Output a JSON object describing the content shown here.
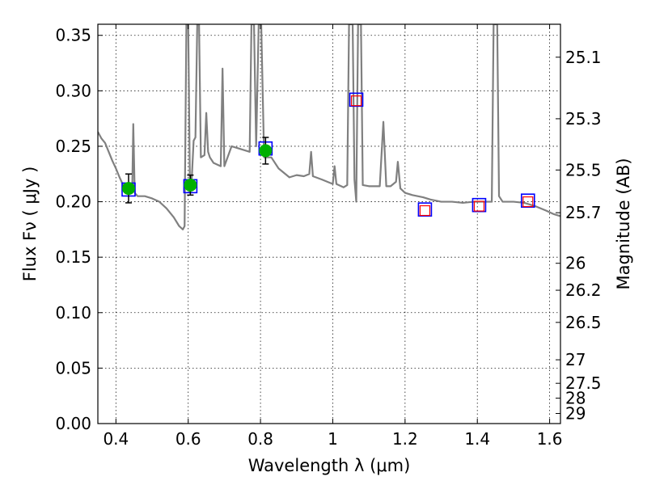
{
  "chart_data": {
    "type": "scatter",
    "xlabel": "Wavelength  λ (μm)",
    "ylabel": "Flux  Fν  ( μJy )",
    "y2label": "Magnitude (AB)",
    "xlim": [
      0.35,
      1.63
    ],
    "ylim": [
      0.0,
      0.36
    ],
    "x_ticks": [
      0.4,
      0.6,
      0.8,
      1.0,
      1.2,
      1.4,
      1.6
    ],
    "x_tick_labels": [
      "0.4",
      "0.6",
      "0.8",
      "1",
      "1.2",
      "1.4",
      "1.6"
    ],
    "y_ticks": [
      0.0,
      0.05,
      0.1,
      0.15,
      0.2,
      0.25,
      0.3,
      0.35
    ],
    "y_tick_labels": [
      "0.00",
      "0.05",
      "0.10",
      "0.15",
      "0.20",
      "0.25",
      "0.30",
      "0.35"
    ],
    "magnitude_ticks": [
      {
        "label": "25.1",
        "flux": 0.3303
      },
      {
        "label": "25.3",
        "flux": 0.2748
      },
      {
        "label": "25.5",
        "flux": 0.2286
      },
      {
        "label": "25.7",
        "flux": 0.1901
      },
      {
        "label": "26",
        "flux": 0.1445
      },
      {
        "label": "26.2",
        "flux": 0.1202
      },
      {
        "label": "26.5",
        "flux": 0.0912
      },
      {
        "label": "27",
        "flux": 0.0575
      },
      {
        "label": "27.5",
        "flux": 0.0363
      },
      {
        "label": "28",
        "flux": 0.0229
      },
      {
        "label": "29",
        "flux": 0.0091
      }
    ],
    "grid": true,
    "colors": {
      "model": "#808080",
      "model_box": "#0000ff",
      "observed": "#00b000",
      "predicted": "#ff0000",
      "errorbar": "#000000"
    },
    "model_spectrum": [
      [
        0.35,
        0.263
      ],
      [
        0.36,
        0.257
      ],
      [
        0.37,
        0.253
      ],
      [
        0.38,
        0.245
      ],
      [
        0.39,
        0.237
      ],
      [
        0.4,
        0.23
      ],
      [
        0.41,
        0.222
      ],
      [
        0.42,
        0.215
      ],
      [
        0.43,
        0.21
      ],
      [
        0.44,
        0.213
      ],
      [
        0.445,
        0.208
      ],
      [
        0.448,
        0.27
      ],
      [
        0.452,
        0.208
      ],
      [
        0.46,
        0.205
      ],
      [
        0.48,
        0.205
      ],
      [
        0.5,
        0.203
      ],
      [
        0.52,
        0.2
      ],
      [
        0.54,
        0.194
      ],
      [
        0.56,
        0.186
      ],
      [
        0.575,
        0.178
      ],
      [
        0.585,
        0.175
      ],
      [
        0.59,
        0.178
      ],
      [
        0.595,
        0.36
      ],
      [
        0.6,
        0.36
      ],
      [
        0.605,
        0.208
      ],
      [
        0.61,
        0.222
      ],
      [
        0.615,
        0.255
      ],
      [
        0.62,
        0.258
      ],
      [
        0.625,
        0.36
      ],
      [
        0.63,
        0.36
      ],
      [
        0.635,
        0.24
      ],
      [
        0.645,
        0.242
      ],
      [
        0.65,
        0.28
      ],
      [
        0.655,
        0.245
      ],
      [
        0.66,
        0.24
      ],
      [
        0.67,
        0.235
      ],
      [
        0.69,
        0.232
      ],
      [
        0.695,
        0.32
      ],
      [
        0.7,
        0.232
      ],
      [
        0.72,
        0.25
      ],
      [
        0.74,
        0.248
      ],
      [
        0.76,
        0.246
      ],
      [
        0.77,
        0.245
      ],
      [
        0.775,
        0.36
      ],
      [
        0.782,
        0.36
      ],
      [
        0.788,
        0.25
      ],
      [
        0.795,
        0.36
      ],
      [
        0.802,
        0.36
      ],
      [
        0.81,
        0.24
      ],
      [
        0.83,
        0.24
      ],
      [
        0.85,
        0.23
      ],
      [
        0.88,
        0.222
      ],
      [
        0.9,
        0.224
      ],
      [
        0.92,
        0.223
      ],
      [
        0.935,
        0.225
      ],
      [
        0.94,
        0.245
      ],
      [
        0.945,
        0.223
      ],
      [
        0.97,
        0.22
      ],
      [
        1.0,
        0.216
      ],
      [
        1.005,
        0.232
      ],
      [
        1.01,
        0.216
      ],
      [
        1.03,
        0.213
      ],
      [
        1.04,
        0.215
      ],
      [
        1.045,
        0.36
      ],
      [
        1.055,
        0.36
      ],
      [
        1.06,
        0.22
      ],
      [
        1.065,
        0.2
      ],
      [
        1.07,
        0.36
      ],
      [
        1.078,
        0.36
      ],
      [
        1.083,
        0.215
      ],
      [
        1.1,
        0.214
      ],
      [
        1.13,
        0.214
      ],
      [
        1.14,
        0.272
      ],
      [
        1.148,
        0.214
      ],
      [
        1.16,
        0.214
      ],
      [
        1.175,
        0.218
      ],
      [
        1.18,
        0.236
      ],
      [
        1.187,
        0.212
      ],
      [
        1.2,
        0.208
      ],
      [
        1.22,
        0.206
      ],
      [
        1.25,
        0.204
      ],
      [
        1.27,
        0.202
      ],
      [
        1.3,
        0.2
      ],
      [
        1.33,
        0.2
      ],
      [
        1.36,
        0.199
      ],
      [
        1.39,
        0.2
      ],
      [
        1.42,
        0.2
      ],
      [
        1.44,
        0.2
      ],
      [
        1.445,
        0.36
      ],
      [
        1.455,
        0.36
      ],
      [
        1.46,
        0.205
      ],
      [
        1.47,
        0.2
      ],
      [
        1.5,
        0.2
      ],
      [
        1.53,
        0.199
      ],
      [
        1.56,
        0.196
      ],
      [
        1.59,
        0.192
      ],
      [
        1.61,
        0.189
      ],
      [
        1.63,
        0.187
      ]
    ],
    "model_fluxes": [
      {
        "x": 0.435,
        "y": 0.211
      },
      {
        "x": 0.606,
        "y": 0.214
      },
      {
        "x": 0.814,
        "y": 0.248
      },
      {
        "x": 1.065,
        "y": 0.292
      },
      {
        "x": 1.255,
        "y": 0.193
      },
      {
        "x": 1.405,
        "y": 0.197
      },
      {
        "x": 1.54,
        "y": 0.201
      }
    ],
    "observed_fluxes": [
      {
        "x": 0.435,
        "y": 0.212,
        "err": 0.013
      },
      {
        "x": 0.606,
        "y": 0.215,
        "err": 0.009
      },
      {
        "x": 0.814,
        "y": 0.246,
        "err": 0.012
      }
    ],
    "predicted_fluxes": [
      {
        "x": 1.065,
        "y": 0.291
      },
      {
        "x": 1.255,
        "y": 0.192
      },
      {
        "x": 1.405,
        "y": 0.196
      },
      {
        "x": 1.54,
        "y": 0.2
      }
    ]
  }
}
